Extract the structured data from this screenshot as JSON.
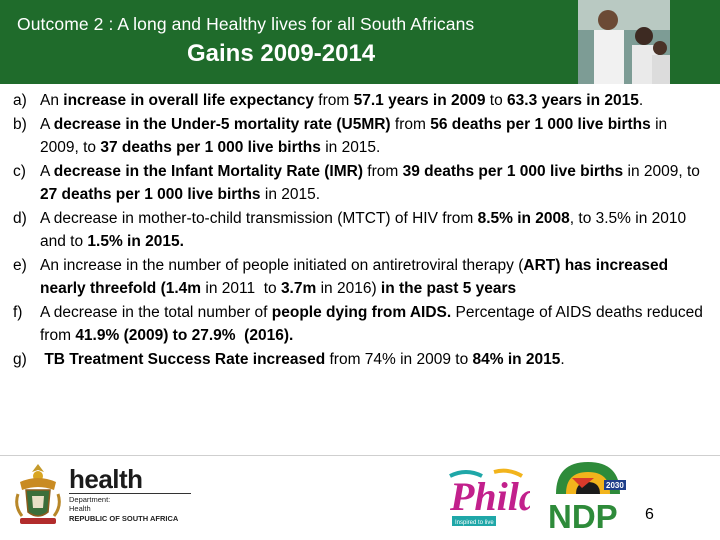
{
  "header": {
    "title": "Outcome 2 : A long and Healthy lives for all South Africans",
    "subtitle": "Gains 2009-2014"
  },
  "items": [
    {
      "label": "a)",
      "segments": [
        {
          "text": "An ",
          "bold": false
        },
        {
          "text": "increase in overall life expectancy",
          "bold": true
        },
        {
          "text": " from ",
          "bold": false
        },
        {
          "text": "57.1 years in 2009",
          "bold": true
        },
        {
          "text": " to ",
          "bold": false
        },
        {
          "text": "63.3 years in 2015",
          "bold": true
        },
        {
          "text": ".",
          "bold": false
        }
      ]
    },
    {
      "label": "b)",
      "segments": [
        {
          "text": "A ",
          "bold": false
        },
        {
          "text": "decrease in the Under-5 mortality rate (U5MR)",
          "bold": true
        },
        {
          "text": " from ",
          "bold": false
        },
        {
          "text": "56 deaths per 1 000 live births",
          "bold": true
        },
        {
          "text": " in 2009, to ",
          "bold": false
        },
        {
          "text": "37 deaths per 1 000 live births",
          "bold": true
        },
        {
          "text": " in 2015.",
          "bold": false
        }
      ]
    },
    {
      "label": "c)",
      "segments": [
        {
          "text": "A ",
          "bold": false
        },
        {
          "text": "decrease in the Infant Mortality Rate (IMR)",
          "bold": true
        },
        {
          "text": " from ",
          "bold": false
        },
        {
          "text": "39 deaths per 1 000 live births",
          "bold": true
        },
        {
          "text": " in 2009, to ",
          "bold": false
        },
        {
          "text": "27 deaths per 1 000 live births",
          "bold": true
        },
        {
          "text": " in 2015.",
          "bold": false
        }
      ]
    },
    {
      "label": "d)",
      "segments": [
        {
          "text": "A decrease in mother-to-child transmission (MTCT) of HIV from ",
          "bold": false
        },
        {
          "text": "8.5% in 2008",
          "bold": true
        },
        {
          "text": ", to 3.5% in 2010 and to ",
          "bold": false
        },
        {
          "text": "1.5% in 2015.",
          "bold": true
        }
      ]
    },
    {
      "label": "e)",
      "segments": [
        {
          "text": "An increase in the number of people initiated on antiretroviral therapy (",
          "bold": false
        },
        {
          "text": "ART) has increased nearly threefold (1.4m",
          "bold": true
        },
        {
          "text": " in 2011  to ",
          "bold": false
        },
        {
          "text": "3.7m",
          "bold": true
        },
        {
          "text": " in 2016) ",
          "bold": false
        },
        {
          "text": "in the past 5 years",
          "bold": true
        }
      ]
    },
    {
      "label": "f)",
      "segments": [
        {
          "text": "A decrease in the total number of ",
          "bold": false
        },
        {
          "text": "people dying from AIDS.",
          "bold": true
        },
        {
          "text": " Percentage of AIDS deaths reduced from ",
          "bold": false
        },
        {
          "text": "41.9% (2009) to 27.9%  (2016).",
          "bold": true
        }
      ]
    },
    {
      "label": "g)",
      "segments": [
        {
          "text": " TB Treatment Success Rate increased",
          "bold": true
        },
        {
          "text": " from 74% in 2009 to ",
          "bold": false
        },
        {
          "text": "84% in 2015",
          "bold": true
        },
        {
          "text": ".",
          "bold": false
        }
      ]
    }
  ],
  "footer": {
    "health_logo": {
      "word": "health",
      "dept_line1": "Department:",
      "dept_line2": "Health",
      "country": "REPUBLIC OF SOUTH AFRICA"
    },
    "phila_logo": {
      "word": "Phila",
      "tagline": "Inspired to live"
    },
    "ndp_logo": {
      "year": "2030",
      "word": "NDP"
    },
    "slide_number": "6"
  },
  "colors": {
    "header_bg": "#1f6b2b",
    "header_text": "#ffffff",
    "ndp_green": "#2e8b3a",
    "ndp_gold": "#f2b41c",
    "phila_magenta": "#c2208c",
    "phila_teal": "#1fa7a8"
  }
}
